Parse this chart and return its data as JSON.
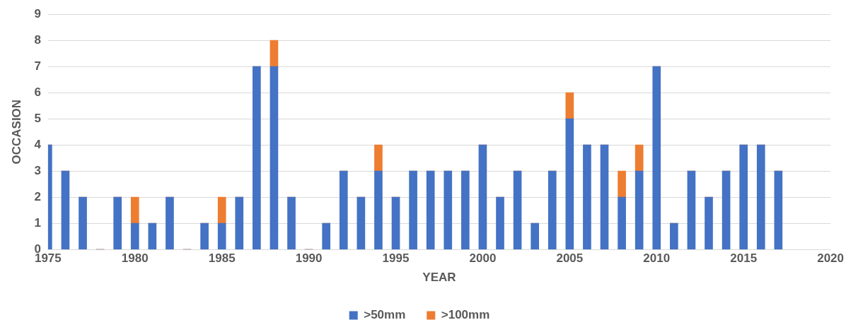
{
  "chart_data": {
    "type": "bar",
    "stacked": true,
    "xlabel": "YEAR",
    "ylabel": "OCCASION",
    "x": [
      1975,
      1976,
      1977,
      1978,
      1979,
      1980,
      1981,
      1982,
      1983,
      1984,
      1985,
      1986,
      1987,
      1988,
      1989,
      1990,
      1991,
      1992,
      1993,
      1994,
      1995,
      1996,
      1997,
      1998,
      1999,
      2000,
      2001,
      2002,
      2003,
      2004,
      2005,
      2006,
      2007,
      2008,
      2009,
      2010,
      2011,
      2012,
      2013,
      2014,
      2015,
      2016,
      2017
    ],
    "series": [
      {
        "name": ">50mm",
        "color": "#4472c4",
        "values": [
          4,
          3,
          2,
          0,
          2,
          1,
          1,
          2,
          0,
          1,
          1,
          2,
          7,
          7,
          2,
          0,
          1,
          3,
          2,
          3,
          2,
          3,
          3,
          3,
          3,
          4,
          2,
          3,
          1,
          3,
          5,
          4,
          4,
          2,
          3,
          7,
          1,
          3,
          2,
          3,
          4,
          4,
          3
        ]
      },
      {
        "name": ">100mm",
        "color": "#ed7d31",
        "values": [
          0,
          0,
          0,
          0,
          0,
          1,
          0,
          0,
          0,
          0,
          1,
          0,
          0,
          1,
          0,
          0,
          0,
          0,
          0,
          1,
          0,
          0,
          0,
          0,
          0,
          0,
          0,
          0,
          0,
          0,
          1,
          0,
          0,
          1,
          1,
          0,
          0,
          0,
          0,
          0,
          0,
          0,
          0
        ]
      }
    ],
    "xlim": [
      1975,
      2020
    ],
    "xticks": [
      1975,
      1980,
      1985,
      1990,
      1995,
      2000,
      2005,
      2010,
      2015,
      2020
    ],
    "ylim": [
      0,
      9
    ],
    "yticks": [
      0,
      1,
      2,
      3,
      4,
      5,
      6,
      7,
      8,
      9
    ],
    "grid": "y",
    "legend": "bottom"
  }
}
